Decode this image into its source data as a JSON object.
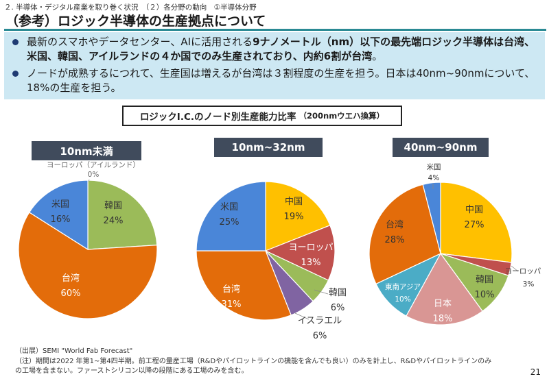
{
  "breadcrumb": "２. 半導体・デジタル産業を取り巻く状況　（２）各分野の動向　①半導体分野",
  "title": "（参考）ロジック半導体の生産拠点について",
  "bullets": [
    {
      "pre": "最新のスマホやデータセンター、AIに活用される",
      "bold": "9ナノメートル（nm）以下の最先端ロジック半導体は台湾、米国、韓国、アイルランドの４か国でのみ生産されており、内約6割が台湾",
      "post": "。"
    },
    {
      "text": "ノードが成熟するにつれて、生産国は増えるが台湾は３割程度の生産を担う。日本は40nm~90nmについて、18%の生産を担う。"
    }
  ],
  "chart_title": {
    "main": "ロジックI.C.のノード別生産能力比率",
    "sub": "（200nmウエハ換算）"
  },
  "chart_data": [
    {
      "type": "pie",
      "title": "10nm未満",
      "slices": [
        {
          "label": "ヨーロッパ（アイルランド）",
          "value": 0,
          "display": "0%",
          "color": "#4472c4"
        },
        {
          "label": "韓国",
          "value": 24,
          "display": "24%",
          "color": "#9bbb59"
        },
        {
          "label": "台湾",
          "value": 60,
          "display": "60%",
          "color": "#e36c0a"
        },
        {
          "label": "米国",
          "value": 16,
          "display": "16%",
          "color": "#4a86d8"
        }
      ]
    },
    {
      "type": "pie",
      "title": "10nm~32nm",
      "slices": [
        {
          "label": "中国",
          "value": 19,
          "display": "19%",
          "color": "#ffc000"
        },
        {
          "label": "ヨーロッパ",
          "value": 13,
          "display": "13%",
          "color": "#c0504d"
        },
        {
          "label": "韓国",
          "value": 6,
          "display": "6%",
          "color": "#9bbb59"
        },
        {
          "label": "イスラエル",
          "value": 6,
          "display": "6%",
          "color": "#8064a2"
        },
        {
          "label": "台湾",
          "value": 31,
          "display": "31%",
          "color": "#e36c0a"
        },
        {
          "label": "米国",
          "value": 25,
          "display": "25%",
          "color": "#4a86d8"
        }
      ]
    },
    {
      "type": "pie",
      "title": "40nm~90nm",
      "slices": [
        {
          "label": "中国",
          "value": 27,
          "display": "27%",
          "color": "#ffc000"
        },
        {
          "label": "ヨーロッパ",
          "value": 3,
          "display": "3%",
          "color": "#c0504d"
        },
        {
          "label": "韓国",
          "value": 10,
          "display": "10%",
          "color": "#9bbb59"
        },
        {
          "label": "日本",
          "value": 18,
          "display": "18%",
          "color": "#d99694"
        },
        {
          "label": "東南アジア",
          "value": 10,
          "display": "10%",
          "color": "#4bacc6"
        },
        {
          "label": "台湾",
          "value": 28,
          "display": "28%",
          "color": "#e36c0a"
        },
        {
          "label": "米国",
          "value": 4,
          "display": "4%",
          "color": "#4a86d8"
        }
      ]
    }
  ],
  "footnotes": {
    "source": "（出展）SEMI \"World Fab Forecast\"",
    "note_line1": "（注）期間は2022 年第1~第4四半期。前工程の量産工場（R&Dやパイロットラインの機能を含んでも良い）のみを計上し、R&Dやパイロットラインのみ",
    "note_line2": "の工場を含まない。ファーストシリコン以降の段階にある工場のみを含む。"
  },
  "page_number": "21"
}
